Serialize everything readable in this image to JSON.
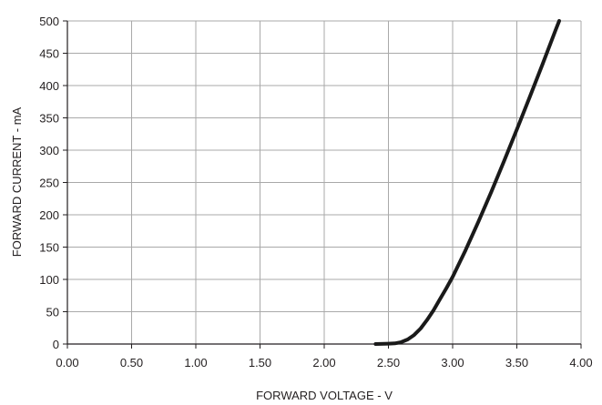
{
  "chart_data": {
    "type": "line",
    "title": "",
    "xlabel": "FORWARD VOLTAGE - V",
    "ylabel": "FORWARD CURRENT - mA",
    "xlim": [
      0,
      4
    ],
    "ylim": [
      0,
      500
    ],
    "x_ticks": [
      "0.00",
      "0.50",
      "1.00",
      "1.50",
      "2.00",
      "2.50",
      "3.00",
      "3.50",
      "4.00"
    ],
    "y_ticks": [
      "0",
      "50",
      "100",
      "150",
      "200",
      "250",
      "300",
      "350",
      "400",
      "450",
      "500"
    ],
    "grid": true,
    "series": [
      {
        "color": "#1a1a1a",
        "x": [
          2.4,
          2.5,
          2.55,
          2.6,
          2.65,
          2.7,
          2.75,
          2.8,
          2.85,
          2.9,
          2.95,
          3.0,
          3.1,
          3.2,
          3.3,
          3.4,
          3.5,
          3.6,
          3.7,
          3.8,
          3.83
        ],
        "y": [
          0,
          0.5,
          1,
          3,
          7,
          14,
          24,
          37,
          52,
          69,
          86,
          104,
          145,
          189,
          235,
          283,
          332,
          382,
          433,
          485,
          500
        ]
      }
    ]
  }
}
